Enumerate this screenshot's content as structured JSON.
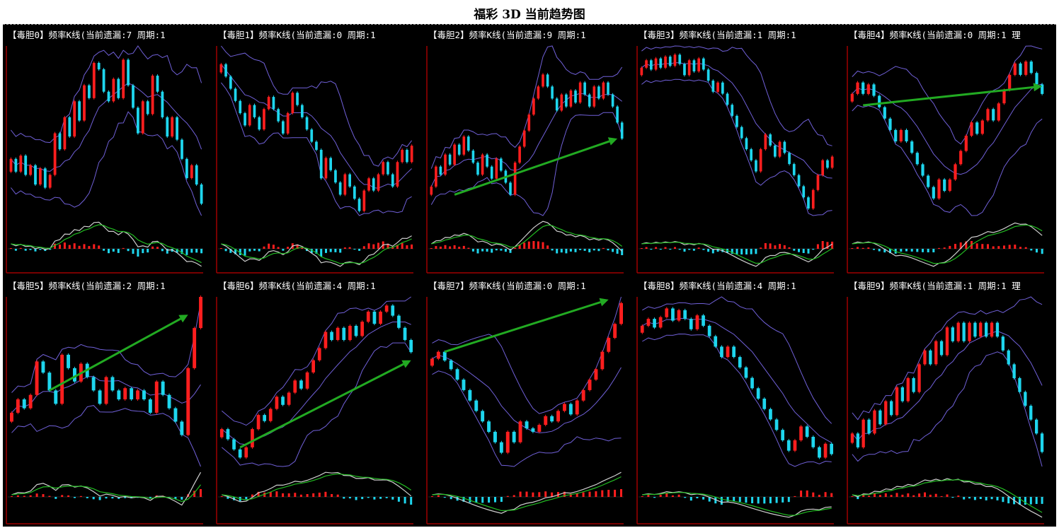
{
  "title": "福彩 3D 当前趋势图",
  "colors": {
    "background": "#000000",
    "up": "#ff1e1e",
    "down": "#1ed6ee",
    "band": "#7060d8",
    "trend_arrow": "#22aa22",
    "axis": "#a00000",
    "dif": "#cfcfcf",
    "dea": "#22bb22"
  },
  "chart_data": [
    {
      "type": "candlestick",
      "title": "【毒胆0】频率K线(当前遗漏:7 周期:1",
      "close": [
        6.8,
        6.4,
        6.9,
        6.3,
        6.6,
        6.0,
        6.5,
        5.9,
        6.3,
        7.6,
        7.1,
        8.1,
        7.5,
        8.6,
        8.0,
        9.1,
        8.7,
        9.8,
        9.6,
        8.9,
        8.6,
        9.3,
        8.7,
        9.9,
        9.1,
        8.4,
        7.6,
        8.6,
        8.2,
        9.4,
        8.9,
        8.1,
        7.5,
        8.1,
        7.4,
        6.8,
        6.2,
        6.6,
        6.0,
        5.4
      ],
      "arrow": null
    },
    {
      "type": "candlestick",
      "title": "【毒胆1】频率K线(当前遗漏:0 周期:1",
      "close": [
        8.8,
        8.2,
        7.6,
        7.0,
        6.4,
        5.8,
        6.8,
        6.2,
        5.6,
        6.6,
        7.2,
        6.6,
        6.0,
        5.4,
        6.4,
        7.4,
        6.8,
        6.2,
        5.6,
        5.0,
        4.6,
        3.2,
        4.2,
        3.6,
        3.0,
        2.4,
        3.4,
        2.8,
        2.2,
        1.6,
        2.6,
        3.2,
        2.6,
        3.4,
        4.0,
        3.4,
        2.8,
        4.0,
        4.6,
        4.0,
        4.8
      ],
      "arrow": null
    },
    {
      "type": "candlestick",
      "title": "【毒胆2】频率K线(当前遗漏:9 周期:1",
      "close": [
        3.6,
        4.6,
        4.2,
        5.2,
        4.7,
        5.7,
        5.2,
        6.1,
        5.4,
        4.8,
        4.2,
        5.2,
        4.6,
        4.0,
        5.0,
        4.4,
        3.8,
        3.2,
        4.8,
        5.6,
        6.4,
        7.2,
        8.0,
        8.6,
        9.2,
        8.6,
        8.0,
        7.4,
        8.2,
        7.6,
        8.4,
        7.8,
        8.8,
        8.2,
        7.6,
        8.6,
        8.0,
        8.8,
        8.2,
        7.6,
        6.8,
        6.0
      ],
      "arrow": {
        "from_index": 5,
        "from_value": 3.2,
        "to_index": 40,
        "to_value": 6.0
      }
    },
    {
      "type": "candlestick",
      "title": "【毒胆3】频率K线(当前遗漏:1 周期:1",
      "close": [
        9.2,
        9.6,
        9.1,
        9.7,
        9.2,
        9.8,
        9.3,
        9.9,
        9.4,
        8.8,
        9.6,
        9.0,
        9.7,
        9.1,
        8.5,
        7.9,
        8.4,
        7.8,
        7.2,
        6.6,
        6.0,
        5.4,
        4.8,
        4.2,
        3.6,
        4.8,
        5.6,
        5.0,
        4.4,
        5.2,
        4.6,
        4.0,
        3.4,
        2.8,
        2.2,
        1.6,
        2.6,
        3.4,
        4.2,
        3.8,
        4.4
      ],
      "arrow": null
    },
    {
      "type": "candlestick",
      "title": "【毒胆4】频率K线(当前遗漏:0 周期:1 理",
      "close": [
        7.6,
        8.2,
        7.6,
        8.1,
        7.5,
        6.9,
        6.3,
        5.7,
        5.1,
        5.7,
        5.1,
        4.5,
        3.9,
        3.3,
        2.7,
        2.1,
        3.1,
        2.5,
        3.1,
        3.9,
        4.6,
        5.4,
        6.1,
        5.5,
        6.2,
        6.8,
        6.2,
        7.1,
        7.8,
        8.6,
        9.2,
        8.6,
        9.3,
        8.7,
        8.1,
        7.6
      ],
      "arrow": {
        "from_index": 2,
        "from_value": 7.0,
        "to_index": 35,
        "to_value": 8.0
      }
    },
    {
      "type": "candlestick",
      "title": "【毒胆5】频率K线(当前遗漏:2 周期:1",
      "close": [
        4.2,
        4.8,
        4.4,
        5.0,
        6.5,
        6.0,
        5.2,
        4.6,
        6.8,
        6.2,
        5.6,
        6.4,
        5.8,
        5.2,
        4.6,
        5.8,
        5.2,
        4.8,
        5.3,
        4.8,
        5.2,
        4.8,
        4.2,
        5.6,
        5.0,
        4.4,
        3.8,
        3.2,
        6.2,
        8.0,
        9.4
      ],
      "arrow": {
        "from_index": 6,
        "from_value": 5.2,
        "to_index": 28,
        "to_value": 8.6
      }
    },
    {
      "type": "candlestick",
      "title": "【毒胆6】频率K线(当前遗漏:4 周期:1",
      "close": [
        2.8,
        2.3,
        1.8,
        1.4,
        1.9,
        2.8,
        3.5,
        3.2,
        3.8,
        4.4,
        4.0,
        4.6,
        5.2,
        4.8,
        5.6,
        6.2,
        6.8,
        7.6,
        7.2,
        7.8,
        7.2,
        7.9,
        7.4,
        8.1,
        8.6,
        8.0,
        8.6,
        8.9,
        8.4,
        7.8,
        7.2,
        6.6
      ],
      "arrow": {
        "from_index": 3,
        "from_value": 1.9,
        "to_index": 31,
        "to_value": 6.2
      }
    },
    {
      "type": "candlestick",
      "title": "【毒胆7】频率K线(当前遗漏:0 周期:1",
      "close": [
        6.4,
        6.8,
        6.3,
        5.8,
        5.2,
        4.6,
        4.0,
        3.4,
        2.8,
        2.2,
        1.6,
        1.0,
        2.2,
        1.6,
        2.8,
        2.4,
        2.2,
        2.6,
        3.1,
        2.8,
        3.4,
        3.8,
        3.2,
        4.0,
        4.6,
        5.2,
        5.8,
        6.8,
        7.6,
        8.4,
        9.6
      ],
      "arrow": {
        "from_index": 2,
        "from_value": 6.8,
        "to_index": 28,
        "to_value": 9.8
      }
    },
    {
      "type": "candlestick",
      "title": "【毒胆8】频率K线(当前遗漏:4 周期:1",
      "close": [
        8.8,
        9.2,
        8.7,
        9.3,
        9.8,
        9.1,
        9.7,
        9.2,
        8.6,
        9.4,
        8.8,
        8.2,
        7.6,
        7.0,
        7.6,
        7.0,
        6.4,
        5.8,
        5.2,
        4.6,
        4.0,
        3.4,
        2.8,
        2.2,
        1.6,
        2.2,
        3.0,
        2.4,
        1.8,
        1.2,
        2.0,
        1.4
      ],
      "arrow": null
    },
    {
      "type": "candlestick",
      "title": "【毒胆9】频率K线(当前遗漏:1 周期:1 理",
      "close": [
        4.0,
        3.4,
        4.6,
        4.0,
        5.0,
        4.4,
        5.4,
        4.8,
        6.0,
        5.4,
        6.4,
        5.8,
        7.0,
        7.6,
        7.0,
        8.0,
        7.4,
        8.6,
        8.0,
        8.8,
        8.0,
        8.8,
        8.2,
        8.8,
        8.2,
        8.8,
        8.2,
        7.6,
        7.0,
        6.4,
        5.8,
        5.2,
        4.6,
        4.0,
        3.2
      ],
      "arrow": null
    }
  ]
}
